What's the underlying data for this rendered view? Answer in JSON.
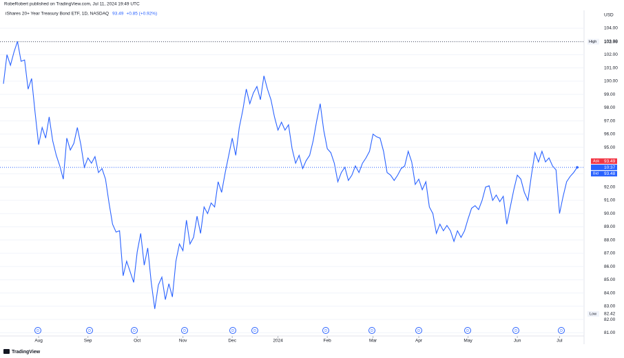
{
  "header": {
    "publisher": "RobeRobert published on TradingView.com, Jul 11, 2024 19:49 UTC"
  },
  "chart_data": {
    "type": "line",
    "title": "iShares 20+ Year Treasury Bond ETF, 1D, NASDAQ",
    "change_label": "+0.85 (+0.92%)",
    "currency": "USD",
    "color": "#2962ff",
    "categories": [
      null,
      null,
      null,
      null,
      null,
      null,
      null,
      null,
      null,
      null,
      "Aug",
      null,
      null,
      null,
      null,
      null,
      null,
      null,
      null,
      null,
      null,
      null,
      null,
      null,
      "Sep",
      null,
      null,
      null,
      null,
      null,
      null,
      null,
      null,
      null,
      null,
      null,
      null,
      null,
      "Oct",
      null,
      null,
      null,
      null,
      null,
      null,
      null,
      null,
      null,
      null,
      null,
      null,
      "Nov",
      null,
      null,
      null,
      null,
      null,
      null,
      null,
      null,
      null,
      null,
      null,
      null,
      null,
      "Dec",
      null,
      null,
      null,
      null,
      null,
      null,
      null,
      null,
      null,
      null,
      null,
      null,
      "2024",
      null,
      null,
      null,
      null,
      null,
      null,
      null,
      null,
      null,
      null,
      null,
      null,
      null,
      "Feb",
      null,
      null,
      null,
      null,
      null,
      null,
      null,
      null,
      null,
      null,
      null,
      null,
      "Mar",
      null,
      null,
      null,
      null,
      null,
      null,
      null,
      null,
      null,
      null,
      null,
      null,
      "Apr",
      null,
      null,
      null,
      null,
      null,
      null,
      null,
      null,
      null,
      null,
      null,
      null,
      null,
      "May",
      null,
      null,
      null,
      null,
      null,
      null,
      null,
      null,
      null,
      null,
      null,
      null,
      null,
      "Jun",
      null,
      null,
      null,
      null,
      null,
      null,
      null,
      null,
      null,
      null,
      null,
      "Jul",
      null,
      null,
      null,
      null,
      null
    ],
    "values": [
      99.8,
      102.0,
      101.2,
      102.2,
      103.0,
      101.5,
      101.6,
      99.4,
      100.2,
      97.6,
      95.2,
      96.5,
      95.7,
      97.3,
      95.5,
      94.4,
      93.6,
      92.6,
      95.7,
      94.8,
      95.3,
      96.5,
      95.2,
      93.5,
      94.2,
      93.8,
      94.3,
      93.1,
      93.4,
      92.6,
      90.8,
      89.2,
      88.6,
      88.7,
      85.3,
      86.4,
      85.6,
      84.8,
      87.1,
      88.5,
      86.1,
      87.4,
      84.8,
      82.8,
      84.6,
      85.2,
      83.5,
      84.7,
      83.7,
      86.4,
      87.7,
      87.2,
      89.5,
      87.7,
      88.2,
      89.8,
      88.5,
      90.5,
      90.0,
      90.8,
      90.5,
      92.4,
      91.6,
      93.1,
      94.4,
      95.7,
      94.4,
      96.5,
      97.8,
      99.4,
      98.3,
      99.1,
      99.6,
      98.6,
      100.4,
      99.4,
      98.6,
      97.3,
      96.3,
      96.9,
      96.3,
      96.7,
      94.9,
      93.8,
      94.4,
      93.4,
      94.0,
      94.4,
      95.5,
      97.0,
      98.3,
      96.3,
      94.9,
      94.6,
      93.8,
      92.4,
      93.1,
      93.5,
      92.5,
      92.9,
      93.6,
      93.1,
      93.8,
      94.2,
      94.7,
      96.0,
      95.8,
      95.7,
      94.7,
      93.1,
      92.9,
      92.5,
      92.9,
      93.4,
      93.6,
      94.7,
      93.9,
      92.2,
      92.6,
      91.8,
      92.4,
      90.5,
      90.0,
      88.5,
      89.2,
      88.7,
      89.1,
      88.7,
      87.9,
      88.7,
      88.2,
      88.7,
      89.6,
      90.4,
      90.6,
      90.3,
      91.0,
      92.0,
      92.1,
      91.0,
      91.4,
      90.9,
      91.3,
      89.2,
      90.5,
      91.8,
      92.9,
      92.6,
      91.6,
      91.0,
      92.9,
      94.6,
      93.9,
      94.7,
      93.9,
      94.2,
      93.6,
      93.3,
      90.0,
      91.3,
      92.4,
      92.8,
      93.1,
      93.49
    ],
    "ylim": [
      80.65,
      105.35
    ],
    "yticks": [
      {
        "value": 81,
        "label": "81.00"
      },
      {
        "value": 82,
        "label": "82.00"
      },
      {
        "value": 83,
        "label": "83.00"
      },
      {
        "value": 84,
        "label": "84.00"
      },
      {
        "value": 85,
        "label": "85.00"
      },
      {
        "value": 86,
        "label": "86.00"
      },
      {
        "value": 87,
        "label": "87.00"
      },
      {
        "value": 88,
        "label": "88.00"
      },
      {
        "value": 89,
        "label": "89.00"
      },
      {
        "value": 90,
        "label": "90.00"
      },
      {
        "value": 91,
        "label": "91.00"
      },
      {
        "value": 92,
        "label": "92.00"
      },
      {
        "value": 93,
        "label": "93.00"
      },
      {
        "value": 94,
        "label": "94.00"
      },
      {
        "value": 95,
        "label": "95.00"
      },
      {
        "value": 96,
        "label": "96.00"
      },
      {
        "value": 97,
        "label": "97.00"
      },
      {
        "value": 98,
        "label": "98.00"
      },
      {
        "value": 99,
        "label": "99.00"
      },
      {
        "value": 100,
        "label": "100.00"
      },
      {
        "value": 101,
        "label": "101.00"
      },
      {
        "value": 102,
        "label": "102.00"
      },
      {
        "value": 103,
        "label": "103.00"
      },
      {
        "value": 104,
        "label": "104.00"
      }
    ],
    "grid": true,
    "high": {
      "label": "High",
      "value": 102.98
    },
    "low": {
      "label": "Low",
      "value": 82.42
    },
    "ask": {
      "label": "Ask",
      "value": 93.49,
      "color": "#f23645"
    },
    "bid": {
      "label": "Bid",
      "value": 93.48,
      "color": "#2962ff"
    },
    "countdown": "10:37",
    "dividend_marker": "D"
  },
  "footer": {
    "brand": "TradingView"
  }
}
